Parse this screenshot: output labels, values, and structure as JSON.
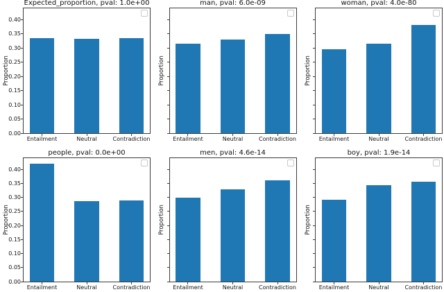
{
  "chart_data": {
    "type": "bar",
    "layout": {
      "rows": 2,
      "cols": 3
    },
    "categories": [
      "Entailment",
      "Neutral",
      "Contradiction"
    ],
    "ylabel": "Proportion",
    "ylim": [
      0,
      0.44
    ],
    "yticks": [
      0,
      0.05,
      0.1,
      0.15,
      0.2,
      0.25,
      0.3,
      0.35,
      0.4
    ],
    "ytick_labels": [
      "0.00",
      "0.05",
      "0.10",
      "0.15",
      "0.20",
      "0.25",
      "0.30",
      "0.35",
      "0.40"
    ],
    "bar_color": "#1f77b4",
    "grid": "off",
    "legend": {
      "position": "upper right",
      "entries": [],
      "empty_frame": true
    },
    "subplots": [
      {
        "title": "Expected_proportion, pval: 1.0e+00",
        "values": [
          0.334,
          0.332,
          0.334
        ]
      },
      {
        "title": "man, pval: 6.0e-09",
        "values": [
          0.315,
          0.33,
          0.35
        ]
      },
      {
        "title": "woman, pval: 4.0e-80",
        "values": [
          0.297,
          0.316,
          0.382
        ]
      },
      {
        "title": "people, pval: 0.0e+00",
        "values": [
          0.42,
          0.288,
          0.29
        ]
      },
      {
        "title": "men, pval: 4.6e-14",
        "values": [
          0.3,
          0.33,
          0.36
        ]
      },
      {
        "title": "boy, pval: 1.9e-14",
        "values": [
          0.292,
          0.344,
          0.356
        ]
      }
    ]
  }
}
